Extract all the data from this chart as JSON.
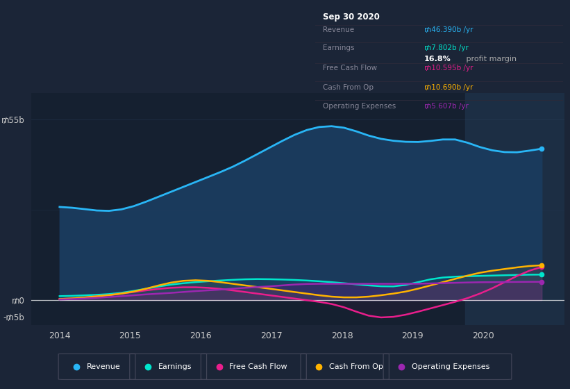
{
  "bg_color": "#1b2537",
  "plot_bg_color": "#152030",
  "fig_w": 8.21,
  "fig_h": 5.6,
  "dpi": 100,
  "ylim": [
    -7.5,
    63
  ],
  "ytick_vals": [
    -5,
    0,
    55
  ],
  "ytick_labels": [
    "-₥5b",
    "₥0",
    "₥55b"
  ],
  "xlim": [
    2013.6,
    2021.15
  ],
  "xtick_positions": [
    2014,
    2015,
    2016,
    2017,
    2018,
    2019,
    2020
  ],
  "revenue_color": "#29b6f6",
  "earnings_color": "#00e5cc",
  "fcf_color": "#e91e8c",
  "cashfromop_color": "#ffb300",
  "opex_color": "#9c27b0",
  "time_start": 2014.0,
  "time_end": 2020.83,
  "n_points": 40,
  "revenue_data": [
    28.5,
    28.2,
    27.8,
    27.2,
    27.0,
    27.5,
    28.5,
    30.0,
    31.5,
    33.0,
    34.5,
    36.0,
    37.5,
    39.0,
    40.5,
    42.5,
    44.5,
    46.5,
    48.5,
    50.5,
    52.0,
    53.0,
    53.2,
    52.8,
    51.5,
    50.0,
    49.0,
    48.5,
    48.2,
    48.0,
    48.5,
    49.0,
    49.5,
    48.0,
    46.5,
    45.5,
    45.0,
    44.8,
    45.5,
    46.4
  ],
  "earnings_data": [
    1.2,
    1.3,
    1.5,
    1.6,
    1.8,
    2.2,
    2.8,
    3.5,
    4.2,
    4.8,
    5.2,
    5.5,
    5.8,
    6.0,
    6.2,
    6.4,
    6.5,
    6.4,
    6.3,
    6.2,
    6.0,
    5.8,
    5.5,
    5.2,
    4.8,
    4.5,
    4.2,
    4.0,
    4.5,
    5.5,
    6.5,
    7.0,
    7.2,
    7.3,
    7.4,
    7.5,
    7.6,
    7.7,
    7.8,
    7.8
  ],
  "fcf_data": [
    0.3,
    0.5,
    0.8,
    1.2,
    1.5,
    2.0,
    2.5,
    3.0,
    3.5,
    3.8,
    4.0,
    4.0,
    3.8,
    3.5,
    3.0,
    2.5,
    2.0,
    1.5,
    1.0,
    0.5,
    0.0,
    -0.5,
    -1.0,
    -2.0,
    -3.5,
    -5.0,
    -5.5,
    -5.2,
    -4.5,
    -3.5,
    -2.5,
    -1.5,
    -0.5,
    0.5,
    2.0,
    3.5,
    5.5,
    7.5,
    9.0,
    10.6
  ],
  "cashfromop_data": [
    0.3,
    0.5,
    0.8,
    1.2,
    1.5,
    2.0,
    2.5,
    3.5,
    4.5,
    5.5,
    6.0,
    6.2,
    6.0,
    5.5,
    5.0,
    4.5,
    4.0,
    3.5,
    3.0,
    2.5,
    2.0,
    1.5,
    1.0,
    0.8,
    0.8,
    1.0,
    1.5,
    2.0,
    2.5,
    3.5,
    4.5,
    5.5,
    6.5,
    7.5,
    8.5,
    9.0,
    9.5,
    10.0,
    10.5,
    10.7
  ],
  "opex_data": [
    0.2,
    0.3,
    0.5,
    0.7,
    1.0,
    1.2,
    1.5,
    1.8,
    2.0,
    2.2,
    2.5,
    2.8,
    3.0,
    3.2,
    3.5,
    3.8,
    4.0,
    4.2,
    4.5,
    4.8,
    5.0,
    5.0,
    5.0,
    5.0,
    5.0,
    5.0,
    5.0,
    5.0,
    5.0,
    5.0,
    5.1,
    5.2,
    5.3,
    5.4,
    5.5,
    5.5,
    5.5,
    5.6,
    5.6,
    5.6
  ],
  "highlight_start": 2019.75,
  "highlight_end": 2021.2,
  "highlight_color": "#1c2e44",
  "legend_items": [
    {
      "label": "Revenue",
      "color": "#29b6f6"
    },
    {
      "label": "Earnings",
      "color": "#00e5cc"
    },
    {
      "label": "Free Cash Flow",
      "color": "#e91e8c"
    },
    {
      "label": "Cash From Op",
      "color": "#ffb300"
    },
    {
      "label": "Operating Expenses",
      "color": "#9c27b0"
    }
  ],
  "tooltip_title": "Sep 30 2020",
  "tooltip_rows": [
    {
      "label": "Revenue",
      "value": "₥46.390b /yr",
      "value_color": "#29b6f6",
      "dim": false
    },
    {
      "label": "Earnings",
      "value": "₥7.802b /yr",
      "value_color": "#00e5cc",
      "dim": false
    },
    {
      "label": "",
      "value": "16.8% profit margin",
      "value_color": "#cccccc",
      "dim": true,
      "bold_prefix": "16.8%"
    },
    {
      "label": "Free Cash Flow",
      "value": "₥10.595b /yr",
      "value_color": "#e91e8c",
      "dim": false
    },
    {
      "label": "Cash From Op",
      "value": "₥10.690b /yr",
      "value_color": "#ffb300",
      "dim": false
    },
    {
      "label": "Operating Expenses",
      "value": "₥5.607b /yr",
      "value_color": "#9c27b0",
      "dim": false
    }
  ],
  "grid_color": "#2a3f5a",
  "zero_line_color": "#ffffff",
  "axis_text_color": "#cccccc"
}
